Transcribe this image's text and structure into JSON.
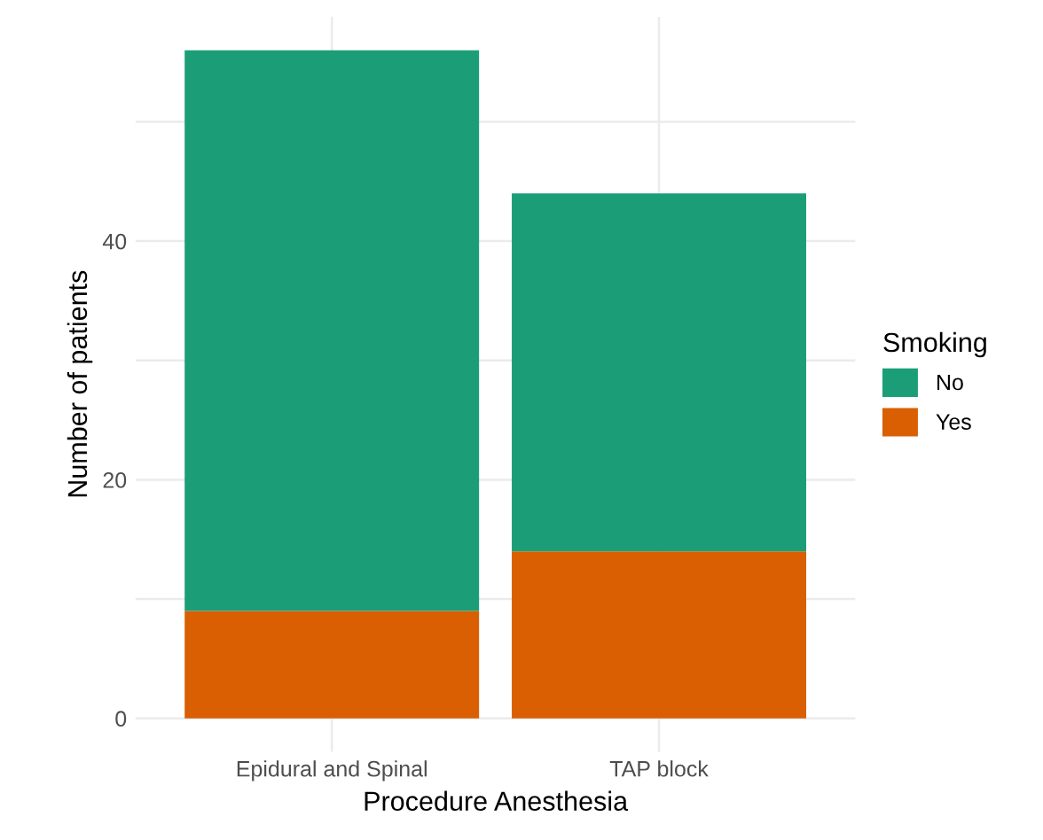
{
  "chart_data": {
    "type": "bar",
    "stacked": true,
    "xlabel": "Procedure Anesthesia",
    "ylabel": "Number of patients",
    "legend_title": "Smoking",
    "legend": "right",
    "grid": true,
    "categories": [
      "Epidural and Spinal",
      "TAP block"
    ],
    "series": [
      {
        "name": "Yes",
        "color": "#d95f02",
        "values": [
          9,
          14
        ]
      },
      {
        "name": "No",
        "color": "#1b9e77",
        "values": [
          47,
          30
        ]
      }
    ],
    "ylim": [
      -2.8,
      58.8
    ],
    "yticks": [
      0,
      {
        "value": 10,
        "label": null
      },
      20,
      {
        "value": 30,
        "label": null
      },
      40,
      {
        "value": 50,
        "label": null
      }
    ]
  }
}
